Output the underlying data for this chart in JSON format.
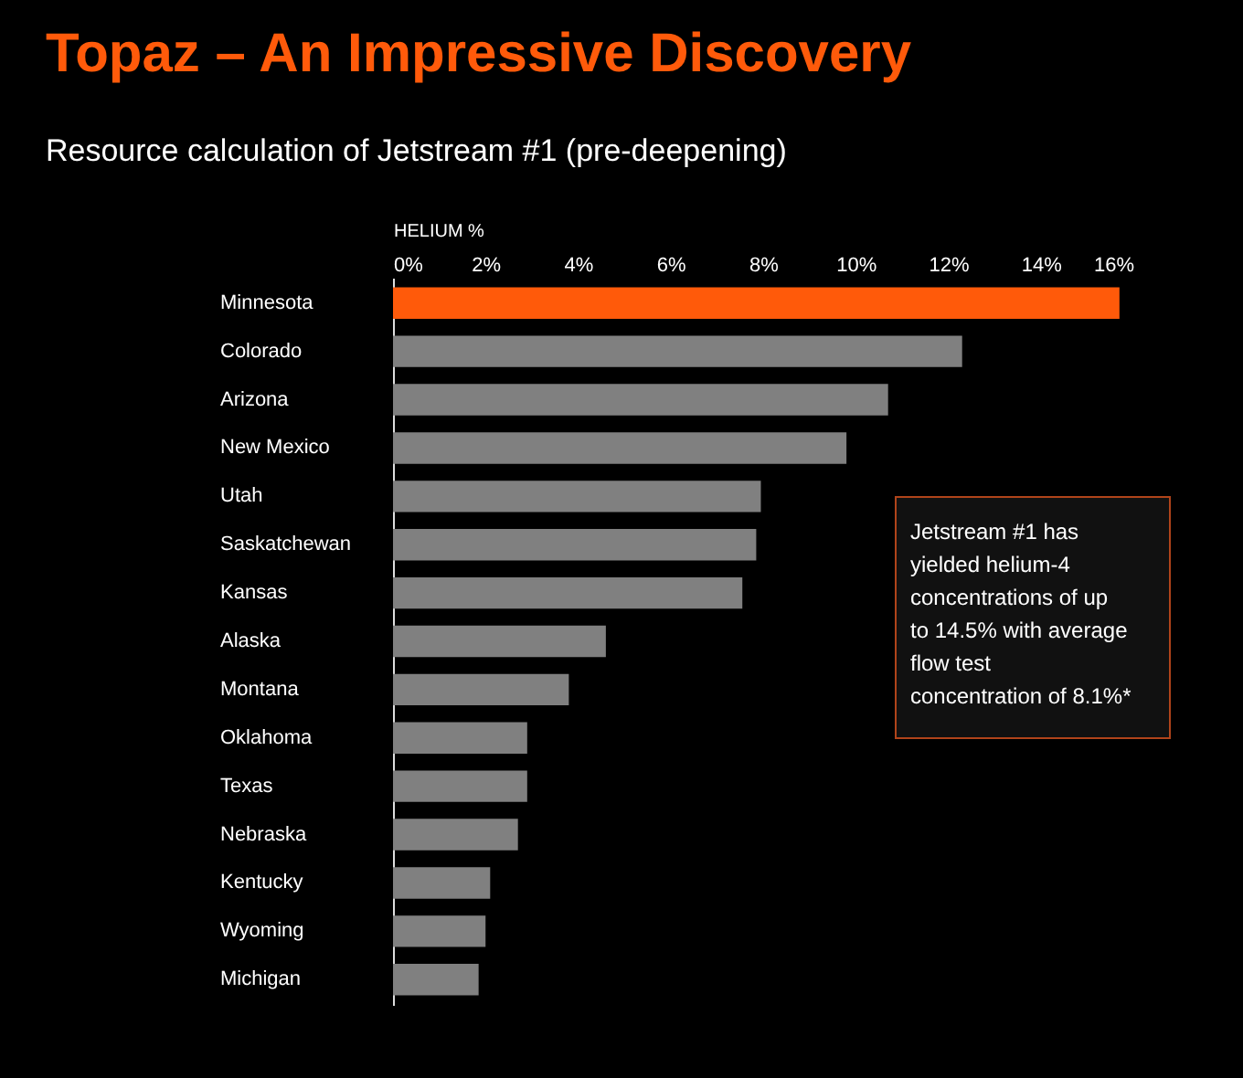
{
  "chart_data": {
    "type": "bar",
    "orientation": "horizontal",
    "title": "Topaz – An Impressive Discovery",
    "subtitle": "Resource calculation of Jetstream #1 (pre-deepening)",
    "xlabel": "HELIUM %",
    "categories": [
      "Minnesota",
      "Colorado",
      "Arizona",
      "New Mexico",
      "Utah",
      "Saskatchewan",
      "Kansas",
      "Alaska",
      "Montana",
      "Oklahoma",
      "Texas",
      "Nebraska",
      "Kentucky",
      "Wyoming",
      "Michigan"
    ],
    "values": [
      15.7,
      12.3,
      10.7,
      9.8,
      7.95,
      7.85,
      7.55,
      4.6,
      3.8,
      2.9,
      2.9,
      2.7,
      2.1,
      2.0,
      1.85
    ],
    "colors": [
      "#ff5a0a",
      "#808080",
      "#808080",
      "#808080",
      "#808080",
      "#808080",
      "#808080",
      "#808080",
      "#808080",
      "#808080",
      "#808080",
      "#808080",
      "#808080",
      "#808080",
      "#808080"
    ],
    "xlim": [
      0,
      16
    ],
    "xticks": [
      {
        "value": 0,
        "label": "0%"
      },
      {
        "value": 2,
        "label": "2%"
      },
      {
        "value": 4,
        "label": "4%"
      },
      {
        "value": 6,
        "label": "6%"
      },
      {
        "value": 8,
        "label": "8%"
      },
      {
        "value": 10,
        "label": "10%"
      },
      {
        "value": 12,
        "label": "12%"
      },
      {
        "value": 14,
        "label": "14%"
      },
      {
        "value": 16,
        "label": "16%"
      }
    ],
    "grid": false,
    "annotations": [
      "Jetstream #1 has yielded helium-4 concentrations of up to 14.5% with average flow test concentration of 8.1%*"
    ]
  }
}
